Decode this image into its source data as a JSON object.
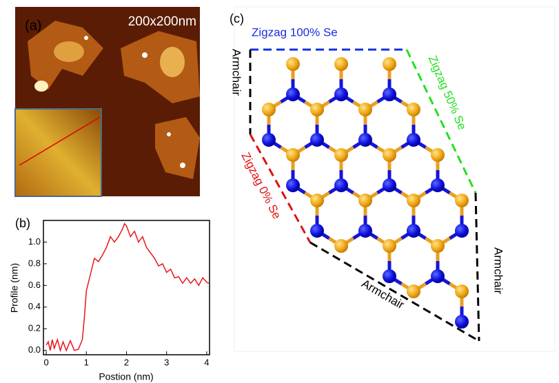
{
  "panel_a": {
    "label": "(a)",
    "scale": "200x200nm"
  },
  "panel_b": {
    "label": "(b)"
  },
  "panel_c": {
    "label": "(c)",
    "top_edge": "Zigzag 100% Se",
    "right_upper_edge": "Zigzag 50% Se",
    "left_lower_edge": "Zigzag 0% Se",
    "left_edge": "Armchair",
    "bottom_edge": "Armchair",
    "right_edge": "Armchair"
  },
  "chart_data": {
    "type": "line",
    "xlabel": "Postion (nm)",
    "ylabel": "Profile (nm)",
    "x": [
      0,
      0.05,
      0.1,
      0.15,
      0.2,
      0.28,
      0.35,
      0.42,
      0.5,
      0.6,
      0.7,
      0.8,
      0.9,
      0.95,
      1.0,
      1.1,
      1.2,
      1.3,
      1.4,
      1.5,
      1.6,
      1.7,
      1.8,
      1.9,
      1.95,
      2.0,
      2.1,
      2.2,
      2.3,
      2.4,
      2.5,
      2.6,
      2.7,
      2.8,
      2.9,
      3.0,
      3.1,
      3.2,
      3.3,
      3.4,
      3.5,
      3.6,
      3.7,
      3.8,
      3.9,
      4.0,
      4.05
    ],
    "series": [
      {
        "color": "#e8141c",
        "values": [
          0.05,
          0.08,
          0.0,
          0.1,
          0.02,
          0.1,
          0.0,
          0.08,
          0.0,
          0.09,
          0.0,
          0.01,
          0.1,
          0.3,
          0.55,
          0.7,
          0.85,
          0.82,
          0.88,
          0.95,
          1.05,
          1.0,
          1.05,
          1.12,
          1.17,
          1.15,
          1.05,
          1.1,
          1.0,
          1.05,
          0.95,
          0.9,
          0.85,
          0.78,
          0.8,
          0.72,
          0.75,
          0.67,
          0.68,
          0.62,
          0.67,
          0.62,
          0.66,
          0.6,
          0.67,
          0.63,
          0.62
        ]
      }
    ],
    "xlim": [
      -0.07,
      4.07
    ],
    "ylim": [
      -0.04,
      1.2
    ],
    "xticks": [
      0,
      1,
      2,
      3,
      4
    ],
    "yticks": [
      {
        "value": 0,
        "label": "0.0"
      },
      0.2,
      0.4,
      0.6,
      0.8,
      {
        "value": 1,
        "label": "1.0"
      }
    ]
  }
}
